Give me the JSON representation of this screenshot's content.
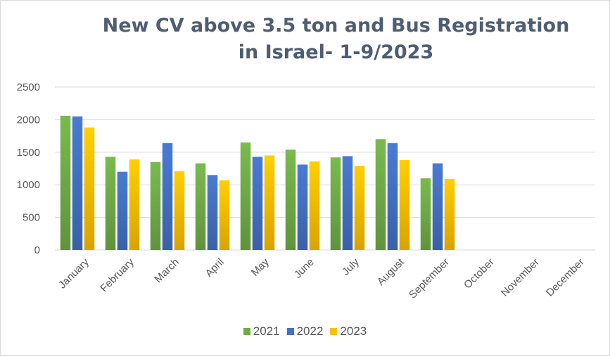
{
  "chart_data": {
    "type": "bar",
    "title": [
      "New CV above 3.5 ton and Bus Registration",
      "in Israel- 1-9/2023"
    ],
    "xlabel": "",
    "ylabel": "",
    "ylim": [
      0,
      2500
    ],
    "yticks": [
      0,
      500,
      1000,
      1500,
      2000,
      2500
    ],
    "grid": true,
    "legend_position": "bottom",
    "categories": [
      "January",
      "February",
      "March",
      "April",
      "May",
      "June",
      "July",
      "August",
      "September",
      "October",
      "November",
      "December"
    ],
    "series": [
      {
        "name": "2021",
        "color": "#70ad47",
        "values": [
          2060,
          1430,
          1350,
          1330,
          1650,
          1540,
          1420,
          1700,
          1100,
          null,
          null,
          null
        ]
      },
      {
        "name": "2022",
        "color": "#4472c4",
        "values": [
          2050,
          1200,
          1640,
          1150,
          1430,
          1310,
          1440,
          1640,
          1330,
          null,
          null,
          null
        ]
      },
      {
        "name": "2023",
        "color": "#ffc000",
        "values": [
          1880,
          1390,
          1210,
          1070,
          1450,
          1360,
          1290,
          1380,
          1090,
          null,
          null,
          null
        ]
      }
    ]
  }
}
